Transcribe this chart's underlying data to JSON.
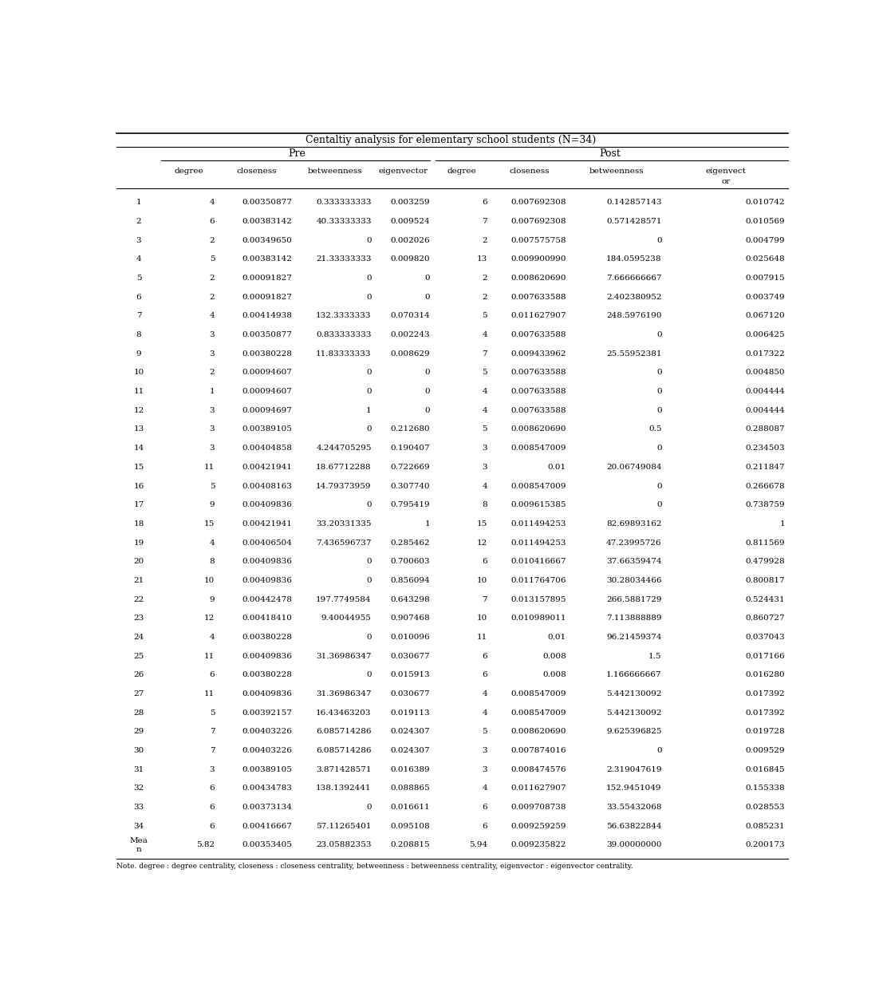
{
  "title": "Centaltiy analysis for elementary school students (N=34)",
  "note": "Note. degree : degree centrality, closeness : closeness centrality, betweenness : betweenness centrality, eigenvector : eigenvector centrality.",
  "pre_header": "Pre",
  "post_header": "Post",
  "col_headers": [
    "degree",
    "closeness",
    "betweenness",
    "eigenvector",
    "degree",
    "closeness",
    "betweenness",
    "eigenvect\nor"
  ],
  "rows": [
    [
      "1",
      "4",
      "0.00350877",
      "0.333333333",
      "0.003259",
      "6",
      "0.007692308",
      "0.142857143",
      "0.010742"
    ],
    [
      "2",
      "6",
      "0.00383142",
      "40.33333333",
      "0.009524",
      "7",
      "0.007692308",
      "0.571428571",
      "0.010569"
    ],
    [
      "3",
      "2",
      "0.00349650",
      "0",
      "0.002026",
      "2",
      "0.007575758",
      "0",
      "0.004799"
    ],
    [
      "4",
      "5",
      "0.00383142",
      "21.33333333",
      "0.009820",
      "13",
      "0.009900990",
      "184.0595238",
      "0.025648"
    ],
    [
      "5",
      "2",
      "0.00091827",
      "0",
      "0",
      "2",
      "0.008620690",
      "7.666666667",
      "0.007915"
    ],
    [
      "6",
      "2",
      "0.00091827",
      "0",
      "0",
      "2",
      "0.007633588",
      "2.402380952",
      "0.003749"
    ],
    [
      "7",
      "4",
      "0.00414938",
      "132.3333333",
      "0.070314",
      "5",
      "0.011627907",
      "248.5976190",
      "0.067120"
    ],
    [
      "8",
      "3",
      "0.00350877",
      "0.833333333",
      "0.002243",
      "4",
      "0.007633588",
      "0",
      "0.006425"
    ],
    [
      "9",
      "3",
      "0.00380228",
      "11.83333333",
      "0.008629",
      "7",
      "0.009433962",
      "25.55952381",
      "0.017322"
    ],
    [
      "10",
      "2",
      "0.00094607",
      "0",
      "0",
      "5",
      "0.007633588",
      "0",
      "0.004850"
    ],
    [
      "11",
      "1",
      "0.00094607",
      "0",
      "0",
      "4",
      "0.007633588",
      "0",
      "0.004444"
    ],
    [
      "12",
      "3",
      "0.00094697",
      "1",
      "0",
      "4",
      "0.007633588",
      "0",
      "0.004444"
    ],
    [
      "13",
      "3",
      "0.00389105",
      "0",
      "0.212680",
      "5",
      "0.008620690",
      "0.5",
      "0.288087"
    ],
    [
      "14",
      "3",
      "0.00404858",
      "4.244705295",
      "0.190407",
      "3",
      "0.008547009",
      "0",
      "0.234503"
    ],
    [
      "15",
      "11",
      "0.00421941",
      "18.67712288",
      "0.722669",
      "3",
      "0.01",
      "20.06749084",
      "0.211847"
    ],
    [
      "16",
      "5",
      "0.00408163",
      "14.79373959",
      "0.307740",
      "4",
      "0.008547009",
      "0",
      "0.266678"
    ],
    [
      "17",
      "9",
      "0.00409836",
      "0",
      "0.795419",
      "8",
      "0.009615385",
      "0",
      "0.738759"
    ],
    [
      "18",
      "15",
      "0.00421941",
      "33.20331335",
      "1",
      "15",
      "0.011494253",
      "82.69893162",
      "1"
    ],
    [
      "19",
      "4",
      "0.00406504",
      "7.436596737",
      "0.285462",
      "12",
      "0.011494253",
      "47.23995726",
      "0.811569"
    ],
    [
      "20",
      "8",
      "0.00409836",
      "0",
      "0.700603",
      "6",
      "0.010416667",
      "37.66359474",
      "0.479928"
    ],
    [
      "21",
      "10",
      "0.00409836",
      "0",
      "0.856094",
      "10",
      "0.011764706",
      "30.28034466",
      "0.800817"
    ],
    [
      "22",
      "9",
      "0.00442478",
      "197.7749584",
      "0.643298",
      "7",
      "0.013157895",
      "266.5881729",
      "0.524431"
    ],
    [
      "23",
      "12",
      "0.00418410",
      "9.40044955",
      "0.907468",
      "10",
      "0.010989011",
      "7.113888889",
      "0.860727"
    ],
    [
      "24",
      "4",
      "0.00380228",
      "0",
      "0.010096",
      "11",
      "0.01",
      "96.21459374",
      "0.037043"
    ],
    [
      "25",
      "11",
      "0.00409836",
      "31.36986347",
      "0.030677",
      "6",
      "0.008",
      "1.5",
      "0.017166"
    ],
    [
      "26",
      "6",
      "0.00380228",
      "0",
      "0.015913",
      "6",
      "0.008",
      "1.166666667",
      "0.016280"
    ],
    [
      "27",
      "11",
      "0.00409836",
      "31.36986347",
      "0.030677",
      "4",
      "0.008547009",
      "5.442130092",
      "0.017392"
    ],
    [
      "28",
      "5",
      "0.00392157",
      "16.43463203",
      "0.019113",
      "4",
      "0.008547009",
      "5.442130092",
      "0.017392"
    ],
    [
      "29",
      "7",
      "0.00403226",
      "6.085714286",
      "0.024307",
      "5",
      "0.008620690",
      "9.625396825",
      "0.019728"
    ],
    [
      "30",
      "7",
      "0.00403226",
      "6.085714286",
      "0.024307",
      "3",
      "0.007874016",
      "0",
      "0.009529"
    ],
    [
      "31",
      "3",
      "0.00389105",
      "3.871428571",
      "0.016389",
      "3",
      "0.008474576",
      "2.319047619",
      "0.016845"
    ],
    [
      "32",
      "6",
      "0.00434783",
      "138.1392441",
      "0.088865",
      "4",
      "0.011627907",
      "152.9451049",
      "0.155338"
    ],
    [
      "33",
      "6",
      "0.00373134",
      "0",
      "0.016611",
      "6",
      "0.009708738",
      "33.55432068",
      "0.028553"
    ],
    [
      "34",
      "6",
      "0.00416667",
      "57.11265401",
      "0.095108",
      "6",
      "0.009259259",
      "56.63822844",
      "0.085231"
    ],
    [
      "Mea\nn",
      "5.82",
      "0.00353405",
      "23.05882353",
      "0.208815",
      "5.94",
      "0.009235822",
      "39.00000000",
      "0.200173"
    ]
  ]
}
